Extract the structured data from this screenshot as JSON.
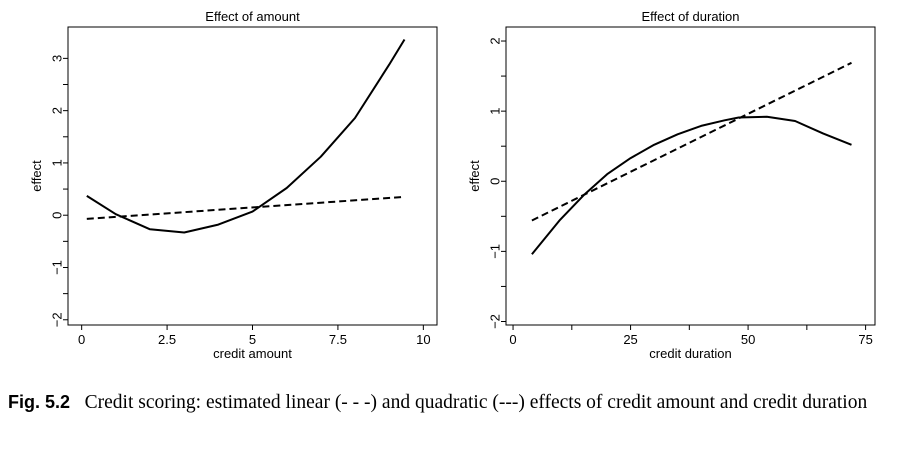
{
  "chart_data": [
    {
      "type": "line",
      "title": "Effect of amount",
      "xlabel": "credit amount",
      "ylabel": "effect",
      "xlim": [
        -0.4,
        10.4
      ],
      "ylim": [
        -2.1,
        3.6
      ],
      "xticks": [
        0,
        2.5,
        5,
        7.5,
        10
      ],
      "xtick_labels": [
        "0",
        "2.5",
        "5",
        "7.5",
        "10"
      ],
      "yticks": [
        -2,
        -1,
        0,
        1,
        2,
        3
      ],
      "ytick_labels": [
        "−2",
        "−1",
        "0",
        "1",
        "2",
        "3"
      ],
      "series": [
        {
          "style": "dashed",
          "x": [
            0.15,
            9.45
          ],
          "y": [
            -0.07,
            0.35
          ]
        },
        {
          "style": "solid",
          "x": [
            0.15,
            1.0,
            2.0,
            3.0,
            4.0,
            5.0,
            6.0,
            7.0,
            8.0,
            9.0,
            9.45
          ],
          "y": [
            0.37,
            0.02,
            -0.27,
            -0.33,
            -0.18,
            0.07,
            0.52,
            1.12,
            1.86,
            2.88,
            3.36
          ]
        }
      ]
    },
    {
      "type": "line",
      "title": "Effect of duration",
      "xlabel": "credit duration",
      "ylabel": "effect",
      "xlim": [
        -1.5,
        77
      ],
      "ylim": [
        -2.05,
        2.2
      ],
      "xticks": [
        0,
        25,
        50,
        75
      ],
      "xtick_labels": [
        "0",
        "25",
        "50",
        "75"
      ],
      "minor_xticks": [
        12.5,
        37.5,
        62.5
      ],
      "yticks": [
        -2,
        -1,
        0,
        1,
        2
      ],
      "ytick_labels": [
        "−2",
        "−1",
        "0",
        "1",
        "2"
      ],
      "series": [
        {
          "style": "dashed",
          "x": [
            4,
            72
          ],
          "y": [
            -0.56,
            1.69
          ]
        },
        {
          "style": "solid",
          "x": [
            4,
            10,
            15,
            20,
            25,
            30,
            35,
            40,
            45,
            48,
            54,
            60,
            66,
            72
          ],
          "y": [
            -1.04,
            -0.55,
            -0.2,
            0.1,
            0.33,
            0.52,
            0.67,
            0.79,
            0.87,
            0.91,
            0.92,
            0.86,
            0.68,
            0.52
          ]
        }
      ]
    }
  ],
  "caption": {
    "label": "Fig. 5.2",
    "text": "Credit scoring: estimated linear (- - -) and quadratic (---) effects of credit amount and credit duration"
  }
}
